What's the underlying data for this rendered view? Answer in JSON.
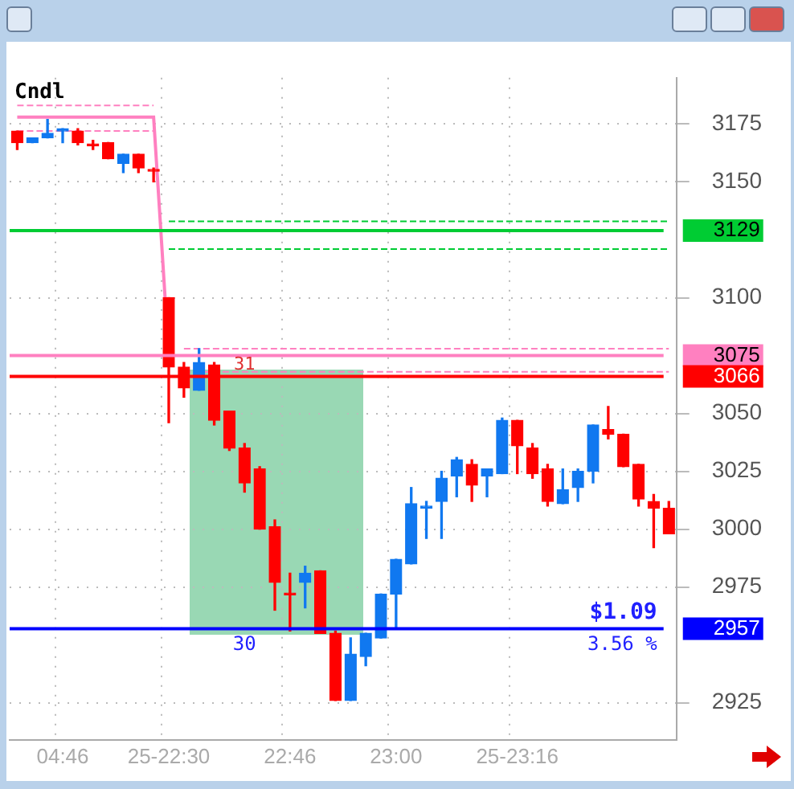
{
  "chart_data": {
    "type": "candlestick",
    "categories": [
      null,
      null,
      null,
      "04:46",
      null,
      null,
      null,
      null,
      null,
      null,
      "25-22:30",
      null,
      null,
      null,
      null,
      null,
      null,
      null,
      "22:46",
      null,
      null,
      null,
      null,
      null,
      null,
      "23:00",
      null,
      null,
      null,
      null,
      null,
      null,
      null,
      "25-23:16",
      null,
      null,
      null,
      null,
      null,
      null,
      null,
      null,
      null,
      null
    ],
    "ohlc": [
      [
        3172,
        3172,
        3164,
        3167
      ],
      [
        3167,
        3169,
        3167,
        3169
      ],
      [
        3169,
        3177,
        3169,
        3171
      ],
      [
        3172,
        3173,
        3167,
        3173
      ],
      [
        3172,
        3173,
        3166,
        3167
      ],
      [
        3166,
        3168,
        3164,
        3166
      ],
      [
        3167,
        3167,
        3160,
        3160
      ],
      [
        3158,
        3162,
        3154,
        3162
      ],
      [
        3162,
        3162,
        3154,
        3156
      ],
      [
        3155,
        3156,
        3150,
        3155
      ],
      [
        3100,
        3100,
        3046,
        3070
      ],
      [
        3070,
        3072,
        3057,
        3061
      ],
      [
        3060,
        3078,
        3060,
        3072
      ],
      [
        3071,
        3072,
        3045,
        3047
      ],
      [
        3051,
        3051,
        3034,
        3035
      ],
      [
        3035,
        3037,
        3016,
        3020
      ],
      [
        3026,
        3027,
        3000,
        3000
      ],
      [
        3001,
        3004,
        2965,
        2977
      ],
      [
        2972,
        2981,
        2956,
        2972
      ],
      [
        2977,
        2984,
        2966,
        2981
      ],
      [
        2982,
        2982,
        2955,
        2955
      ],
      [
        2955,
        2956,
        2926,
        2926
      ],
      [
        2926,
        2953,
        2926,
        2946
      ],
      [
        2945,
        2955,
        2941,
        2955
      ],
      [
        2953,
        2972,
        2953,
        2972
      ],
      [
        2972,
        2987,
        2957,
        2987
      ],
      [
        2985,
        3018,
        2985,
        3011
      ],
      [
        3009,
        3012,
        2996,
        3010
      ],
      [
        3012,
        3025,
        2996,
        3022
      ],
      [
        3023,
        3031,
        3014,
        3030
      ],
      [
        3028,
        3030,
        3012,
        3019
      ],
      [
        3023,
        3026,
        3014,
        3026
      ],
      [
        3024,
        3048,
        3024,
        3047
      ],
      [
        3047,
        3047,
        3024,
        3036
      ],
      [
        3035,
        3037,
        3022,
        3024
      ],
      [
        3026,
        3028,
        3010,
        3012
      ],
      [
        3011,
        3026,
        3011,
        3017
      ],
      [
        3018,
        3026,
        3012,
        3025
      ],
      [
        3025,
        3045,
        3020,
        3045
      ],
      [
        3043,
        3053,
        3039,
        3041
      ],
      [
        3041,
        3041,
        3027,
        3027
      ],
      [
        3028,
        3028,
        3010,
        3013
      ],
      [
        3012,
        3015,
        2992,
        3009
      ],
      [
        3009,
        3012,
        2998,
        2998
      ]
    ],
    "colors": [
      "#ff0000",
      "#1078f0",
      "#1078f0",
      "#1078f0",
      "#ff0000",
      "#ff0000",
      "#ff0000",
      "#1078f0",
      "#ff0000",
      "#ff0000",
      "#ff0000",
      "#ff0000",
      "#1078f0",
      "#ff0000",
      "#ff0000",
      "#ff0000",
      "#ff0000",
      "#ff0000",
      "#ff0000",
      "#1078f0",
      "#ff0000",
      "#ff0000",
      "#1078f0",
      "#1078f0",
      "#1078f0",
      "#1078f0",
      "#1078f0",
      "#1078f0",
      "#1078f0",
      "#1078f0",
      "#ff0000",
      "#1078f0",
      "#1078f0",
      "#ff0000",
      "#ff0000",
      "#ff0000",
      "#1078f0",
      "#1078f0",
      "#1078f0",
      "#ff0000",
      "#ff0000",
      "#ff0000",
      "#ff0000",
      "#ff0000"
    ],
    "series": [
      {
        "type": "line",
        "color": "#ff80c0",
        "line_style": "solid",
        "values": [
          3178,
          3178,
          3178,
          3178,
          3178,
          3178,
          3178,
          3178,
          3178,
          3178,
          3075,
          null,
          null,
          null,
          null,
          null,
          null,
          null,
          null,
          null,
          null,
          null,
          null,
          null,
          null,
          null,
          null,
          null,
          null,
          null,
          null,
          null,
          null,
          null,
          null,
          null,
          null,
          null,
          null,
          null,
          null,
          null,
          null,
          null
        ]
      },
      {
        "type": "line",
        "color": "#ff80c0",
        "line_style": "dashed",
        "values": [
          3183,
          3183,
          3183,
          3183,
          3183,
          3183,
          3183,
          3183,
          3183,
          3183,
          null,
          null,
          null,
          null,
          null,
          null,
          null,
          null,
          null,
          null,
          null,
          null,
          null,
          null,
          null,
          null,
          null,
          null,
          null,
          null,
          null,
          null,
          null,
          null,
          null,
          null,
          null,
          null,
          null,
          null,
          null,
          null,
          null,
          null
        ]
      },
      {
        "type": "line",
        "color": "#ff80c0",
        "line_style": "dashed",
        "values": [
          3172,
          3172,
          3172,
          3172,
          3172,
          3172,
          3172,
          3172,
          3172,
          3172,
          null,
          null,
          null,
          null,
          null,
          null,
          null,
          null,
          null,
          null,
          null,
          null,
          null,
          null,
          null,
          null,
          null,
          null,
          null,
          null,
          null,
          null,
          null,
          null,
          null,
          null,
          null,
          null,
          null,
          null,
          null,
          null,
          null,
          null
        ]
      },
      {
        "type": "line",
        "color": "#ff80c0",
        "line_style": "dashed",
        "values": [
          null,
          null,
          null,
          null,
          null,
          null,
          null,
          null,
          null,
          null,
          null,
          3078,
          3078,
          3078,
          3078,
          3078,
          3078,
          3078,
          3078,
          3078,
          3078,
          3078,
          3078,
          3078,
          3078,
          3078,
          3078,
          3078,
          3078,
          3078,
          3078,
          3078,
          3078,
          3078,
          3078,
          3078,
          3078,
          3078,
          3078,
          3078,
          3078,
          3078,
          3078,
          3078
        ]
      },
      {
        "type": "line",
        "color": "#ff80c0",
        "line_style": "dashed",
        "values": [
          null,
          null,
          null,
          null,
          null,
          null,
          null,
          null,
          null,
          null,
          null,
          3068,
          3068,
          3068,
          3068,
          3068,
          3068,
          3068,
          3068,
          3068,
          3068,
          3068,
          3068,
          3068,
          3068,
          3068,
          3068,
          3068,
          3068,
          3068,
          3068,
          3068,
          3068,
          3068,
          3068,
          3068,
          3068,
          3068,
          3068,
          3068,
          3068,
          3068,
          3068,
          3068
        ]
      },
      {
        "type": "line",
        "color": "#00cc33",
        "line_style": "dashed",
        "values": [
          null,
          null,
          null,
          null,
          null,
          null,
          null,
          null,
          null,
          null,
          3133,
          3133,
          3133,
          3133,
          3133,
          3133,
          3133,
          3133,
          3133,
          3133,
          3133,
          3133,
          3133,
          3133,
          3133,
          3133,
          3133,
          3133,
          3133,
          3133,
          3133,
          3133,
          3133,
          3133,
          3133,
          3133,
          3133,
          3133,
          3133,
          3133,
          3133,
          3133,
          3133,
          3133
        ]
      },
      {
        "type": "line",
        "color": "#00cc33",
        "line_style": "dashed",
        "values": [
          null,
          null,
          null,
          null,
          null,
          null,
          null,
          null,
          null,
          null,
          3121,
          3121,
          3121,
          3121,
          3121,
          3121,
          3121,
          3121,
          3121,
          3121,
          3121,
          3121,
          3121,
          3121,
          3121,
          3121,
          3121,
          3121,
          3121,
          3121,
          3121,
          3121,
          3121,
          3121,
          3121,
          3121,
          3121,
          3121,
          3121,
          3121,
          3121,
          3121,
          3121,
          3121
        ]
      }
    ],
    "ref_lines": [
      {
        "axis": "y",
        "value": 3129,
        "label": "3129",
        "color": "#00cc33"
      },
      {
        "axis": "y",
        "value": 3075,
        "label": "3075",
        "color": "#ff80c0"
      },
      {
        "axis": "y",
        "value": 3066,
        "label": "3066",
        "color": "#ff0000"
      },
      {
        "axis": "y",
        "value": 2957,
        "label": "2957",
        "color": "#0000ff"
      }
    ],
    "annotations": [
      "Cndl",
      {
        "text": "31",
        "y": 3071
      },
      "30",
      "$1.09",
      "3.56 %"
    ],
    "ylim": [
      2909,
      3195
    ],
    "yticks": [
      2925,
      2975,
      3000,
      3025,
      3050,
      3100,
      3150,
      3175
    ],
    "grid": true,
    "legend": false
  }
}
